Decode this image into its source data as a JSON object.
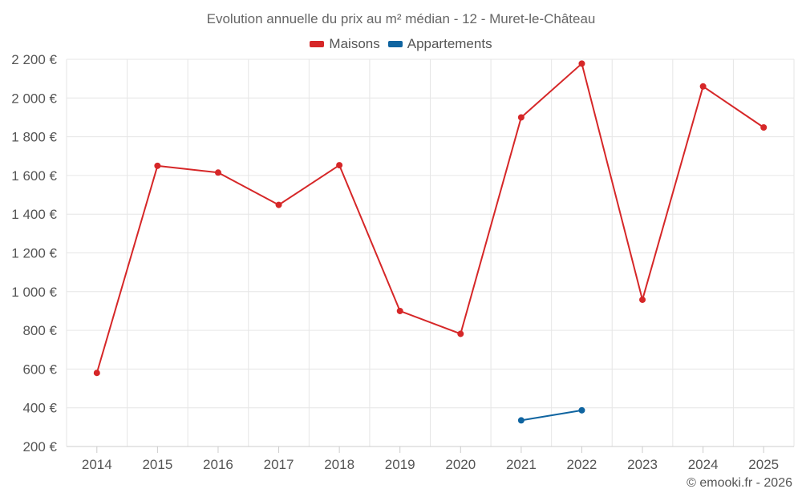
{
  "credit": "© emooki.fr - 2026",
  "chart_data": {
    "type": "line",
    "title": "Evolution annuelle du prix au m² médian - 12 - Muret-le-Château",
    "xlabel": "",
    "ylabel": "",
    "categories": [
      "2014",
      "2015",
      "2016",
      "2017",
      "2018",
      "2019",
      "2020",
      "2021",
      "2022",
      "2023",
      "2024",
      "2025"
    ],
    "ylim": [
      200,
      2200
    ],
    "yticks": [
      200,
      400,
      600,
      800,
      1000,
      1200,
      1400,
      1600,
      1800,
      2000,
      2200
    ],
    "ytick_labels": [
      "200 €",
      "400 €",
      "600 €",
      "800 €",
      "1 000 €",
      "1 200 €",
      "1 400 €",
      "1 600 €",
      "1 800 €",
      "2 000 €",
      "2 200 €"
    ],
    "grid": true,
    "legend_position": "top-center",
    "series": [
      {
        "name": "Maisons",
        "color": "#d62728",
        "values": [
          580,
          1650,
          1615,
          1448,
          1653,
          900,
          782,
          1900,
          2178,
          958,
          2060,
          1848
        ]
      },
      {
        "name": "Appartements",
        "color": "#0f64a0",
        "values": [
          null,
          null,
          null,
          null,
          null,
          null,
          null,
          335,
          387,
          null,
          null,
          null
        ]
      }
    ]
  }
}
